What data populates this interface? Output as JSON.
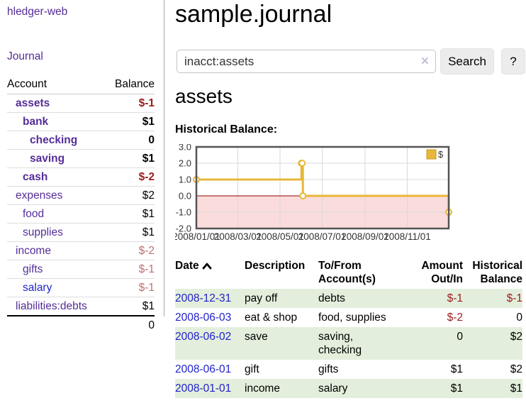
{
  "sidebar": {
    "brand": "hledger-web",
    "nav_journal": "Journal",
    "accounts": {
      "col_account": "Account",
      "col_balance": "Balance",
      "rows": [
        {
          "name": "assets",
          "balance": "$-1"
        },
        {
          "name": "bank",
          "balance": "$1"
        },
        {
          "name": "checking",
          "balance": "0"
        },
        {
          "name": "saving",
          "balance": "$1"
        },
        {
          "name": "cash",
          "balance": "$-2"
        },
        {
          "name": "expenses",
          "balance": "$2"
        },
        {
          "name": "food",
          "balance": "$1"
        },
        {
          "name": "supplies",
          "balance": "$1"
        },
        {
          "name": "income",
          "balance": "$-2"
        },
        {
          "name": "gifts",
          "balance": "$-1"
        },
        {
          "name": "salary",
          "balance": "$-1"
        },
        {
          "name": "liabilities:debts",
          "balance": "$1"
        }
      ],
      "total": "0"
    }
  },
  "main": {
    "title": "sample.journal",
    "search": {
      "value": "inacct:assets",
      "clear_icon": "×",
      "search_button": "Search",
      "help_button": "?"
    },
    "heading": "assets",
    "chart_label": "Historical Balance:"
  },
  "chart_data": {
    "type": "line",
    "step": true,
    "title": "Historical Balance",
    "series": [
      {
        "name": "$",
        "points": [
          {
            "date": "2008-01-01",
            "value": 1
          },
          {
            "date": "2008-06-01",
            "value": 2
          },
          {
            "date": "2008-06-02",
            "value": 2
          },
          {
            "date": "2008-06-03",
            "value": 0
          },
          {
            "date": "2008-12-31",
            "value": -1
          }
        ]
      }
    ],
    "xlim": [
      "2008-01-01",
      "2008-12-31"
    ],
    "ylim": [
      -2,
      3
    ],
    "xticks": [
      {
        "date": "2008-01-01",
        "label": "2008/01/01"
      },
      {
        "date": "2008-03-01",
        "label": "2008/03/01"
      },
      {
        "date": "2008-05-01",
        "label": "2008/05/01"
      },
      {
        "date": "2008-07-01",
        "label": "2008/07/01"
      },
      {
        "date": "2008-09-01",
        "label": "2008/09/01"
      },
      {
        "date": "2008-11-01",
        "label": "2008/11/01"
      }
    ],
    "yticks": [
      {
        "value": 3,
        "label": "3.0"
      },
      {
        "value": 2,
        "label": "2.0"
      },
      {
        "value": 1,
        "label": "1.0"
      },
      {
        "value": 0,
        "label": "0.0"
      },
      {
        "value": -1,
        "label": "-1.0"
      },
      {
        "value": -2,
        "label": "-2.0"
      }
    ],
    "legend": {
      "label": "$",
      "position": "top-right"
    },
    "grid": true,
    "colors": {
      "line": "#e8b73a",
      "marker_fill": "#ffffff",
      "below_zero_fill": "#fbdcdc",
      "zero_line": "#8b0000",
      "border": "#545454",
      "gridline": "#d8d8d8"
    }
  },
  "register": {
    "headers": {
      "date": "Date",
      "sort_icon": "chevron-up",
      "description": "Description",
      "accounts": "To/From Account(s)",
      "amount": "Amount Out/In",
      "balance": "Historical Balance"
    },
    "rows": [
      {
        "date": "2008-12-31",
        "description": "pay off",
        "accounts": "debts",
        "amount": "$-1",
        "balance": "$-1"
      },
      {
        "date": "2008-06-03",
        "description": "eat & shop",
        "accounts": "food, supplies",
        "amount": "$-2",
        "balance": "0"
      },
      {
        "date": "2008-06-02",
        "description": "save",
        "accounts": "saving,\nchecking",
        "amount": "0",
        "balance": "$2"
      },
      {
        "date": "2008-06-01",
        "description": "gift",
        "accounts": "gifts",
        "amount": "$1",
        "balance": "$2"
      },
      {
        "date": "2008-01-01",
        "description": "income",
        "accounts": "salary",
        "amount": "$1",
        "balance": "$1"
      }
    ]
  }
}
